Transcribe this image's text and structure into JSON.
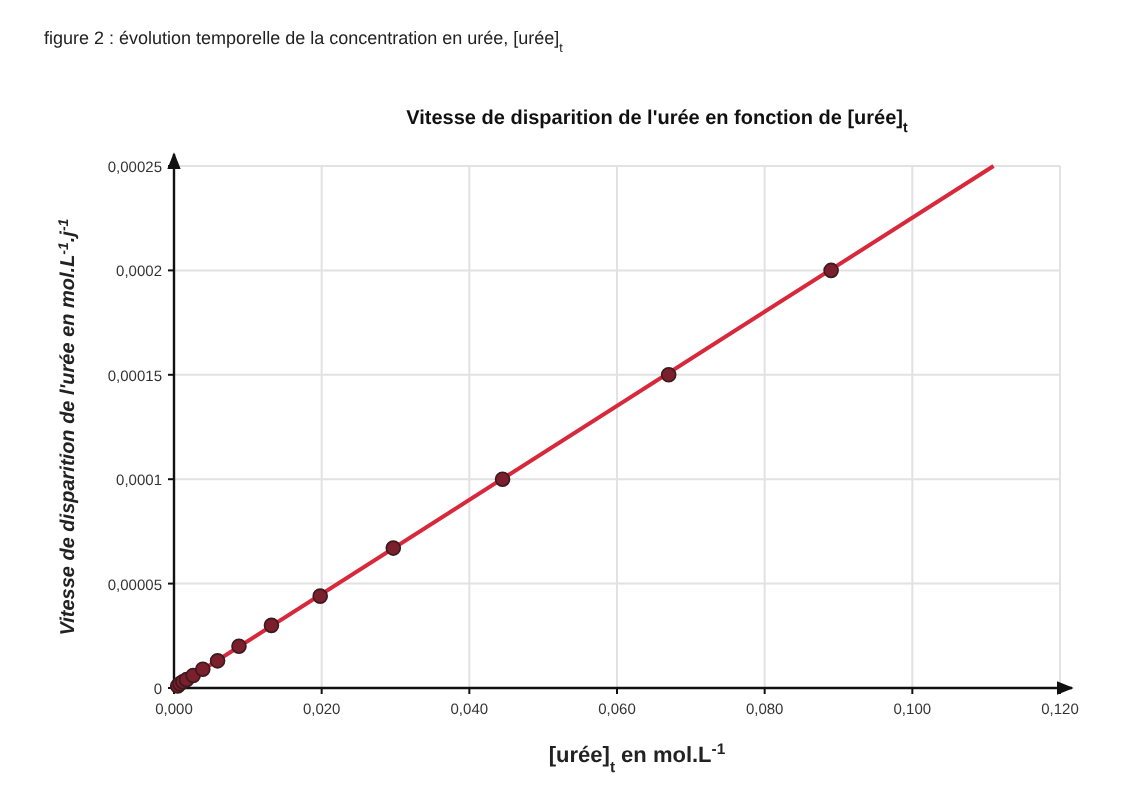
{
  "chart_data": {
    "type": "scatter",
    "title": "Vitesse de disparition de l'urée en fonction de [urée]$_{t}$",
    "xlabel": "[urée]$_{t}$  en mol.L$^{-1}$",
    "ylabel": "Vitesse de disparition de l'urée  en mol.L$^{-1}$.j$^{-1}$",
    "annotations": [
      "figure 2 : évolution temporelle de la concentration en urée, [urée]$_{t}$"
    ],
    "xlim": [
      0,
      0.12
    ],
    "ylim": [
      0,
      0.00025
    ],
    "xticks": [
      {
        "value": 0,
        "label": "0,000"
      },
      {
        "value": 0.02,
        "label": "0,020"
      },
      {
        "value": 0.04,
        "label": "0,040"
      },
      {
        "value": 0.06,
        "label": "0,060"
      },
      {
        "value": 0.08,
        "label": "0,080"
      },
      {
        "value": 0.1,
        "label": "0,100"
      },
      {
        "value": 0.12,
        "label": "0,120"
      }
    ],
    "yticks": [
      0,
      {
        "value": 5e-05,
        "label": "0,00005"
      },
      {
        "value": 0.0001,
        "label": "0,0001"
      },
      {
        "value": 0.00015,
        "label": "0,00015"
      },
      {
        "value": 0.0002,
        "label": "0,0002"
      },
      {
        "value": 0.00025,
        "label": "0,00025"
      }
    ],
    "grid": true,
    "marker": "circle",
    "series": [
      {
        "type": "line",
        "color": "#d8283c",
        "marker": "none",
        "x": [
          0,
          0.111
        ],
        "values": [
          0,
          0.00025
        ]
      },
      {
        "color": "#7a1f2b",
        "x": [
          0.0005,
          0.0008,
          0.0012,
          0.0017,
          0.0026,
          0.0039,
          0.0059,
          0.0088,
          0.0132,
          0.0198,
          0.0297,
          0.0445,
          0.067,
          0.089
        ],
        "values": [
          1e-06,
          2e-06,
          3e-06,
          4e-06,
          6e-06,
          9e-06,
          1.3e-05,
          2e-05,
          3e-05,
          4.4e-05,
          6.7e-05,
          0.0001,
          0.00015,
          0.0002
        ]
      }
    ]
  }
}
